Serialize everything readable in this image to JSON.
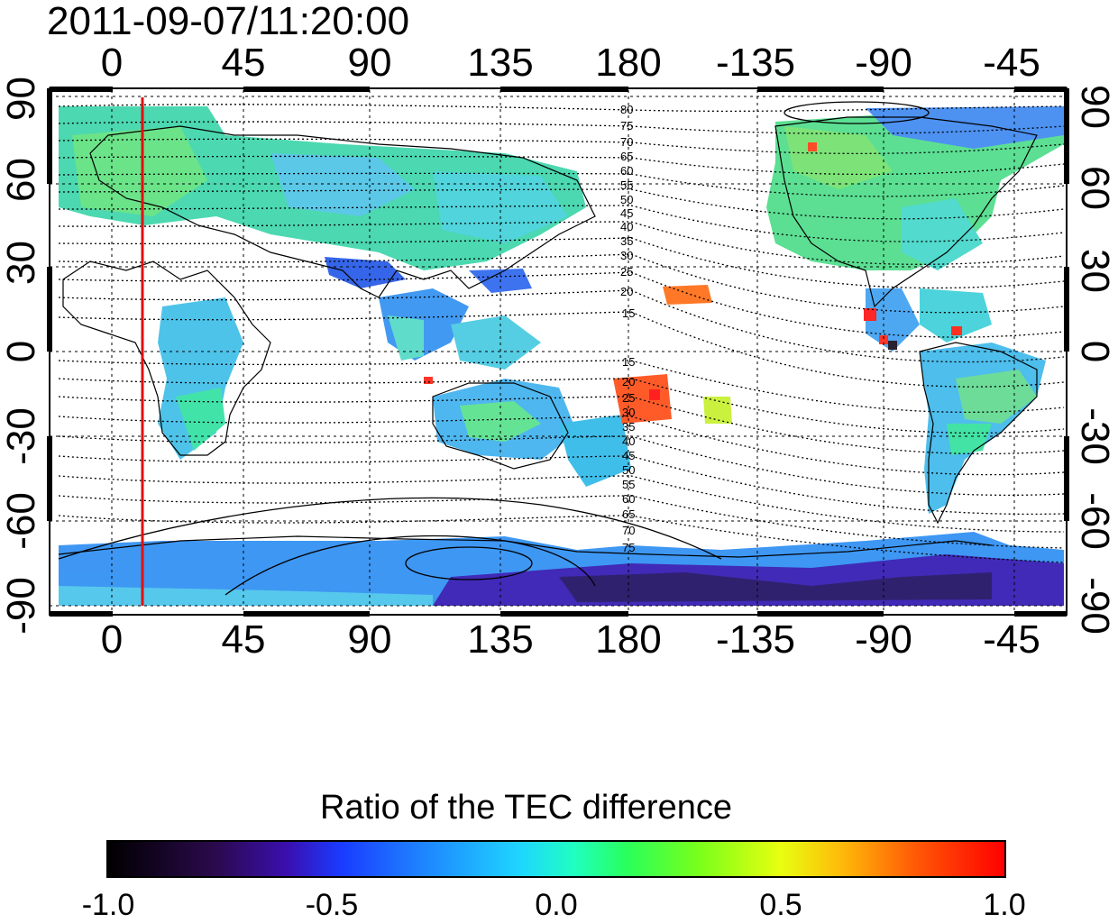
{
  "timestamp": "2011-09-07/11:20:00",
  "map": {
    "top_lon_labels": [
      "0",
      "45",
      "90",
      "135",
      "180",
      "-135",
      "-90",
      "-45"
    ],
    "bottom_lon_labels": [
      "0",
      "45",
      "90",
      "135",
      "180",
      "-135",
      "-90",
      "-45"
    ],
    "left_lat_labels": [
      "90",
      "60",
      "30",
      "0",
      "-30",
      "-60",
      "-90"
    ],
    "right_lat_labels": [
      "90",
      "60",
      "30",
      "0",
      "-30",
      "-60",
      "-90"
    ],
    "contour_labels_north": [
      "80",
      "75",
      "70",
      "65",
      "60",
      "55",
      "50",
      "45",
      "40",
      "35",
      "30",
      "25",
      "20",
      "15"
    ],
    "contour_labels_south": [
      "15",
      "20",
      "25",
      "30",
      "35",
      "40",
      "45",
      "50",
      "55",
      "60",
      "65",
      "70",
      "75"
    ],
    "meridian_line_color": "#e01010"
  },
  "colorbar": {
    "title": "Ratio of the TEC difference",
    "tick_labels": [
      "-1.0",
      "-0.5",
      "0.0",
      "0.5",
      "1.0"
    ],
    "range": [
      -1.0,
      1.0
    ]
  }
}
